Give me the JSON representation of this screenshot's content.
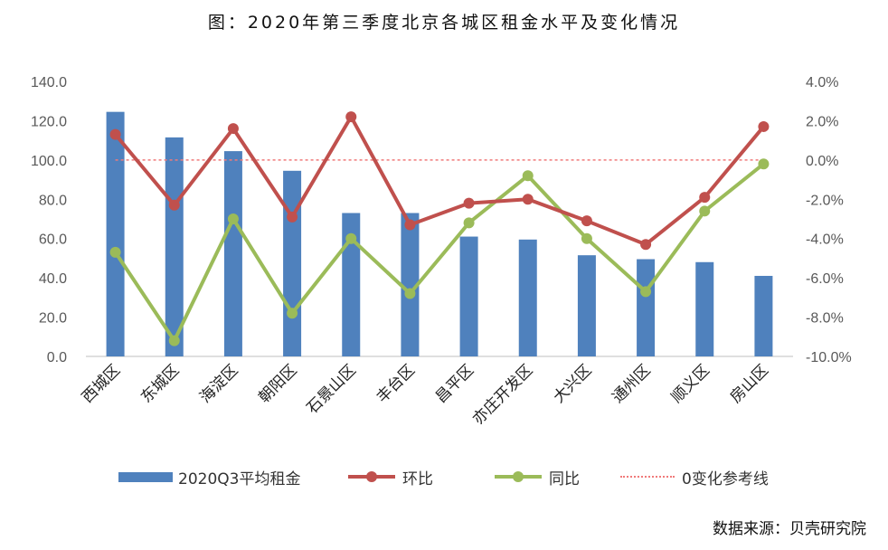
{
  "title": "图：2020年第三季度北京各城区租金水平及变化情况",
  "source": "数据来源：贝壳研究院",
  "colors": {
    "bar": "#4f81bd",
    "mom": "#c0504d",
    "yoy": "#9bbb59",
    "ref": "#f07a7a",
    "axis_text": "#595959",
    "axis_line": "#bfbfbf"
  },
  "legend": {
    "bar": "2020Q3平均租金",
    "mom": "环比",
    "yoy": "同比",
    "ref": "0变化参考线"
  },
  "chart_data": {
    "type": "bar+line",
    "categories": [
      "西城区",
      "东城区",
      "海淀区",
      "朝阳区",
      "石景山区",
      "丰台区",
      "昌平区",
      "亦庄开发区",
      "大兴区",
      "通州区",
      "顺义区",
      "房山区"
    ],
    "y_left": {
      "ticks": [
        "0.0",
        "20.0",
        "40.0",
        "60.0",
        "80.0",
        "100.0",
        "120.0",
        "140.0"
      ],
      "range": [
        0,
        140
      ]
    },
    "y_right": {
      "ticks": [
        "-10.0%",
        "-8.0%",
        "-6.0%",
        "-4.0%",
        "-2.0%",
        "0.0%",
        "2.0%",
        "4.0%"
      ],
      "range": [
        -10,
        4
      ]
    },
    "series": [
      {
        "name": "2020Q3平均租金",
        "type": "bar",
        "axis": "left",
        "values": [
          124.5,
          111.5,
          104.5,
          94.5,
          73.0,
          73.0,
          61.0,
          59.5,
          51.5,
          49.5,
          48.0,
          41.0
        ]
      },
      {
        "name": "环比",
        "type": "line",
        "axis": "right",
        "values": [
          1.3,
          -2.3,
          1.6,
          -2.9,
          2.2,
          -3.3,
          -2.2,
          -2.0,
          -3.1,
          -4.3,
          -1.9,
          1.7
        ]
      },
      {
        "name": "同比",
        "type": "line",
        "axis": "right",
        "values": [
          -4.7,
          -9.2,
          -3.0,
          -7.8,
          -4.0,
          -6.8,
          -3.2,
          -0.8,
          -4.0,
          -6.7,
          -2.6,
          -0.2
        ]
      },
      {
        "name": "0变化参考线",
        "type": "reference",
        "axis": "right",
        "value": 0
      }
    ]
  }
}
